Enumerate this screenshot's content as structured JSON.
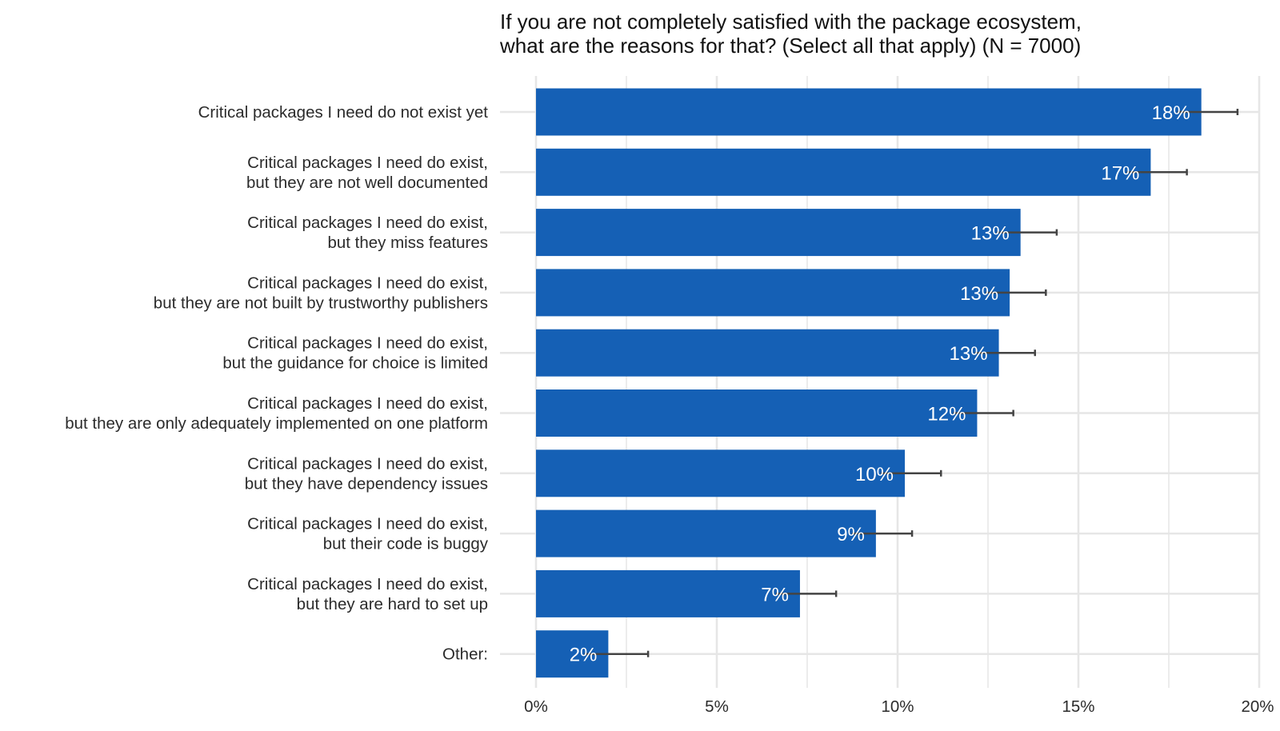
{
  "chart_data": {
    "type": "bar",
    "orientation": "horizontal",
    "title_lines": [
      "If you are not completely satisfied with the package ecosystem,",
      "what are the reasons for that? (Select all that apply)  (N = 7000)"
    ],
    "categories": [
      [
        "Critical packages I need do not exist yet"
      ],
      [
        "Critical packages I need do exist,",
        "but they are not well documented"
      ],
      [
        "Critical packages I need do exist,",
        "but they miss features"
      ],
      [
        "Critical packages I need do exist,",
        "but they are not built by trustworthy publishers"
      ],
      [
        "Critical packages I need do exist,",
        "but the guidance for choice is limited"
      ],
      [
        "Critical packages I need do exist,",
        "but they are only adequately implemented on one platform"
      ],
      [
        "Critical packages I need do exist,",
        "but they have dependency issues"
      ],
      [
        "Critical packages I need do exist,",
        "but their code is buggy"
      ],
      [
        "Critical packages I need do exist,",
        "but they are hard to set up"
      ],
      [
        "Other:"
      ]
    ],
    "values": [
      18.4,
      17.0,
      13.4,
      13.1,
      12.8,
      12.2,
      10.2,
      9.4,
      7.3,
      2.0
    ],
    "error_upper": [
      19.4,
      18.0,
      14.4,
      14.1,
      13.8,
      13.2,
      11.2,
      10.4,
      8.3,
      3.1
    ],
    "value_labels": [
      "18%",
      "17%",
      "13%",
      "13%",
      "13%",
      "12%",
      "10%",
      "9%",
      "7%",
      "2%"
    ],
    "xlim": [
      0,
      20
    ],
    "x_ticks": [
      0,
      5,
      10,
      15,
      20
    ],
    "x_tick_labels": [
      "0%",
      "5%",
      "10%",
      "15%",
      "20%"
    ],
    "grid": true,
    "colors": {
      "bar": "#1560b5",
      "error_bar": "#444444",
      "grid": "#e6e6e6",
      "value_text": "#ffffff"
    }
  }
}
